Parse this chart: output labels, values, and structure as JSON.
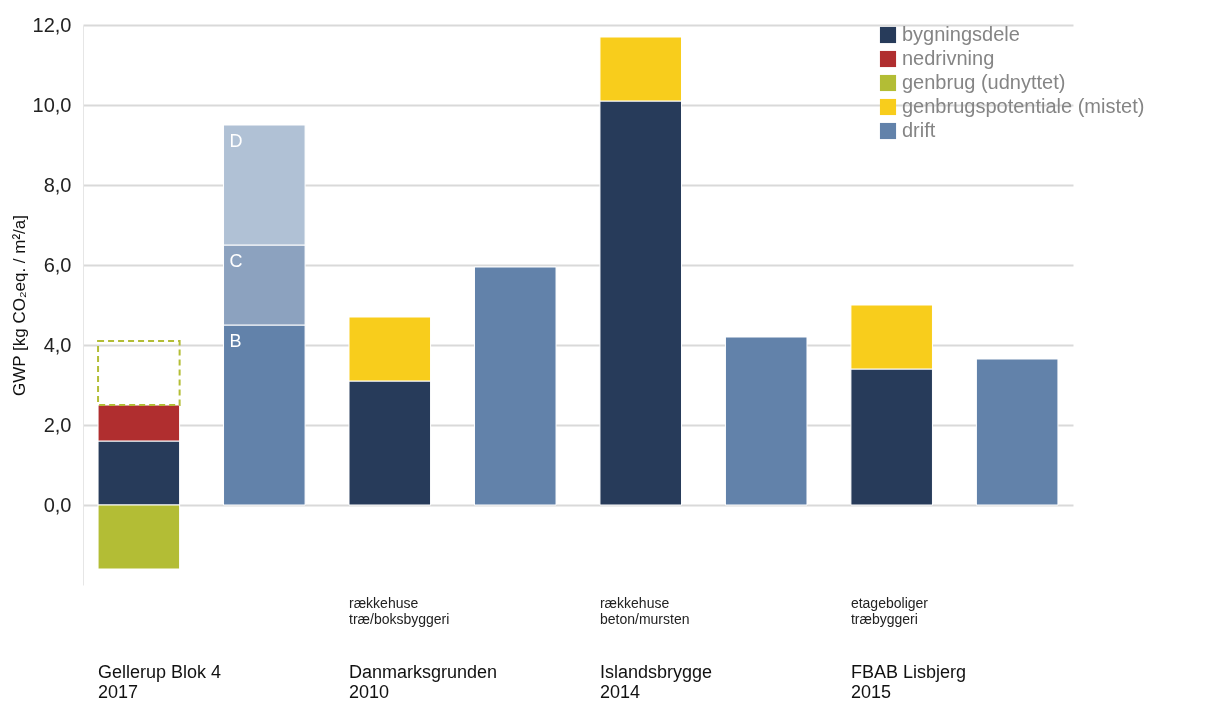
{
  "chart_data": {
    "type": "bar",
    "stacked": true,
    "ylabel": "GWP  [kg CO₂eq. / m²/a]",
    "categories": [
      "Gellerup Blok 4\n2017",
      null,
      "Danmarksgrunden\n2010",
      null,
      "Islandsbrygge\n2014",
      null,
      "FBAB Lisbjerg\n2015",
      null
    ],
    "series": [
      {
        "name": "bygningsdele",
        "color": "#273b5a",
        "values": [
          1.6,
          null,
          3.1,
          null,
          10.1,
          null,
          3.4,
          null
        ]
      },
      {
        "name": "nedrivning",
        "color": "#b02e2f",
        "values": [
          0.9,
          null,
          null,
          null,
          null,
          null,
          null,
          null
        ]
      },
      {
        "name": "genbrug (udnyttet)",
        "color": "#b3bd35",
        "values": [
          -1.6,
          null,
          null,
          null,
          null,
          null,
          null,
          null
        ]
      },
      {
        "name": "genbrugspotentiale (mistet)",
        "color": "#f8cd1c",
        "values": [
          null,
          null,
          1.6,
          null,
          1.6,
          null,
          1.6,
          null
        ]
      },
      {
        "color": "#b3bd35",
        "line_style": "dashed",
        "values": [
          1.6,
          null,
          null,
          null,
          null,
          null,
          null,
          null
        ]
      },
      {
        "name": "drift",
        "color": "#6282aa",
        "values": [
          null,
          4.5,
          null,
          5.95,
          null,
          4.2,
          null,
          3.65
        ],
        "value_labels": [
          null,
          "B",
          null,
          null,
          null,
          null,
          null,
          null
        ]
      },
      {
        "color": "#8ca2bf",
        "values": [
          null,
          2.0,
          null,
          null,
          null,
          null,
          null,
          null
        ],
        "value_labels": [
          null,
          "C",
          null,
          null,
          null,
          null,
          null,
          null
        ]
      },
      {
        "color": "#b0c1d5",
        "values": [
          null,
          3.0,
          null,
          null,
          null,
          null,
          null,
          null
        ],
        "value_labels": [
          null,
          "D",
          null,
          null,
          null,
          null,
          null,
          null
        ]
      }
    ],
    "ylim": [
      -2,
      12
    ],
    "yticks": [
      {
        "value": 0,
        "label": "0,0"
      },
      {
        "value": 2,
        "label": "2,0"
      },
      {
        "value": 4,
        "label": "4,0"
      },
      {
        "value": 6,
        "label": "6,0"
      },
      {
        "value": 8,
        "label": "8,0"
      },
      {
        "value": 10,
        "label": "10,0"
      },
      {
        "value": 12,
        "label": "12,0"
      }
    ],
    "grid": "y",
    "legend": "top right",
    "annotations": [
      "rækkehuse\ntræ/boksbyggeri",
      "rækkehuse\nbeton/mursten",
      "etageboliger\ntræbyggeri"
    ]
  }
}
